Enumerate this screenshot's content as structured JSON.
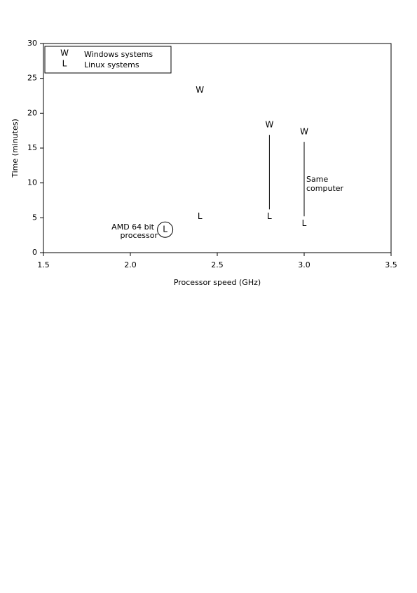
{
  "chart_data": {
    "type": "scatter",
    "x_label": "Processor speed (GHz)",
    "y_label": "Time (minutes)",
    "series": [
      {
        "name": "Windows systems",
        "marker": "W",
        "color": "#000000",
        "x": [
          2.4,
          2.8,
          3.0
        ],
        "values": [
          23.3,
          18.3,
          17.3
        ]
      },
      {
        "name": "Linux systems",
        "marker": "L",
        "color": "#000000",
        "x": [
          2.2,
          2.4,
          2.8,
          3.0
        ],
        "values": [
          3.3,
          5.2,
          5.2,
          4.2
        ]
      }
    ],
    "xlim": [
      1.5,
      3.5
    ],
    "xticks": [
      1.5,
      {
        "value": 2,
        "label": "2.0"
      },
      2.5,
      {
        "value": 3,
        "label": "3.0"
      },
      3.5
    ],
    "ylim": [
      0,
      30
    ],
    "yticks": [
      0,
      5,
      10,
      15,
      20,
      25,
      30
    ],
    "legend": "upper left",
    "grid": false,
    "annotations": [
      {
        "lines": [
          "AMD 64 bit",
          "processor"
        ]
      },
      {
        "lines": [
          "Same",
          "computer"
        ]
      }
    ]
  }
}
